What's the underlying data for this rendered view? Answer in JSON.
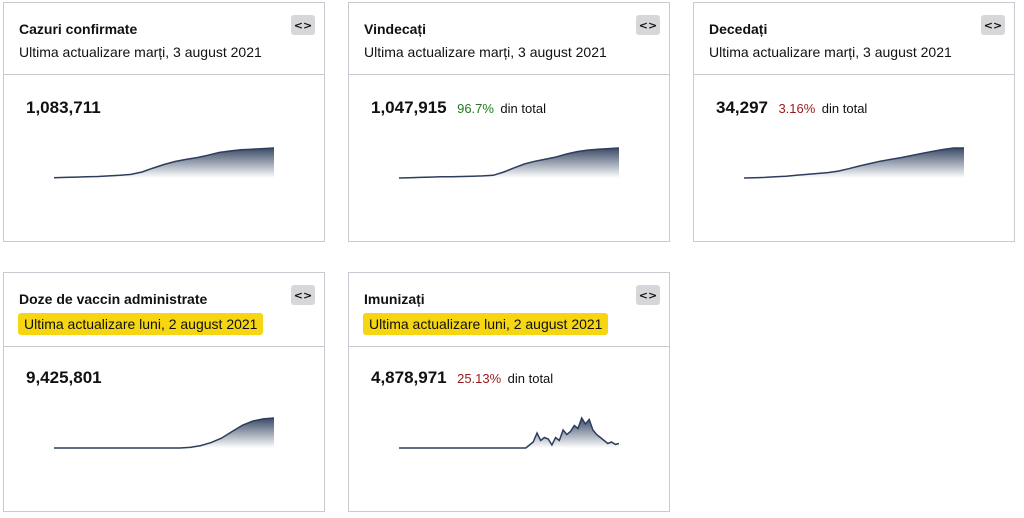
{
  "colors": {
    "line": "#2c3e5c",
    "fill_top": "#3a4a66",
    "highlight": "#f6d612",
    "positive": "#1e7a1e",
    "negative": "#9a1a1a"
  },
  "cards": {
    "confirmed": {
      "title": "Cazuri confirmate",
      "updated": "Ultima actualizare marți, 3 august 2021",
      "embed_label": "<>",
      "embed_icon": "code-icon",
      "value": "1,083,711",
      "trend": [
        0.01,
        0.02,
        0.03,
        0.04,
        0.05,
        0.07,
        0.09,
        0.12,
        0.2,
        0.33,
        0.45,
        0.55,
        0.62,
        0.68,
        0.76,
        0.85,
        0.9,
        0.94,
        0.96,
        0.98,
        1.0
      ]
    },
    "recovered": {
      "title": "Vindecați",
      "updated": "Ultima actualizare marți, 3 august 2021",
      "embed_label": "<>",
      "embed_icon": "code-icon",
      "value": "1,047,915",
      "share": "96.7%",
      "share_suffix": "din total",
      "trend": [
        0.0,
        0.01,
        0.02,
        0.03,
        0.04,
        0.04,
        0.05,
        0.06,
        0.07,
        0.09,
        0.2,
        0.34,
        0.47,
        0.56,
        0.63,
        0.7,
        0.8,
        0.88,
        0.93,
        0.96,
        0.98,
        1.0
      ]
    },
    "deceased": {
      "title": "Decedați",
      "updated": "Ultima actualizare marți, 3 august 2021",
      "embed_label": "<>",
      "embed_icon": "code-icon",
      "value": "34,297",
      "share": "3.16%",
      "share_suffix": "din total",
      "trend": [
        0.0,
        0.01,
        0.02,
        0.04,
        0.06,
        0.09,
        0.12,
        0.15,
        0.18,
        0.23,
        0.31,
        0.4,
        0.48,
        0.56,
        0.62,
        0.68,
        0.75,
        0.82,
        0.89,
        0.95,
        1.0,
        1.0
      ]
    },
    "vaccine_doses": {
      "title": "Doze de vaccin administrate",
      "updated": "Ultima actualizare luni, 2 august 2021",
      "embed_label": "<>",
      "embed_icon": "code-icon",
      "value": "9,425,801",
      "trend": [
        0,
        0,
        0,
        0,
        0,
        0,
        0,
        0,
        0,
        0,
        0,
        0,
        0,
        0.02,
        0.08,
        0.18,
        0.33,
        0.55,
        0.76,
        0.9,
        0.97,
        1.0
      ]
    },
    "immunized": {
      "title": "Imunizați",
      "updated": "Ultima actualizare luni, 2 august 2021",
      "embed_label": "<>",
      "embed_icon": "code-icon",
      "value": "4,878,971",
      "share": "25.13%",
      "share_suffix": "din total",
      "trend": [
        0,
        0,
        0,
        0,
        0,
        0,
        0,
        0,
        0,
        0,
        0,
        0,
        0,
        0,
        0,
        0,
        0,
        0,
        0,
        0,
        0,
        0,
        0,
        0,
        0,
        0,
        0,
        0,
        0,
        0,
        0,
        0,
        0,
        0,
        0,
        0.1,
        0.2,
        0.5,
        0.25,
        0.35,
        0.3,
        0.1,
        0.35,
        0.25,
        0.6,
        0.45,
        0.55,
        0.75,
        0.65,
        1.0,
        0.8,
        0.95,
        0.6,
        0.45,
        0.35,
        0.25,
        0.15,
        0.2,
        0.12,
        0.15
      ]
    }
  }
}
